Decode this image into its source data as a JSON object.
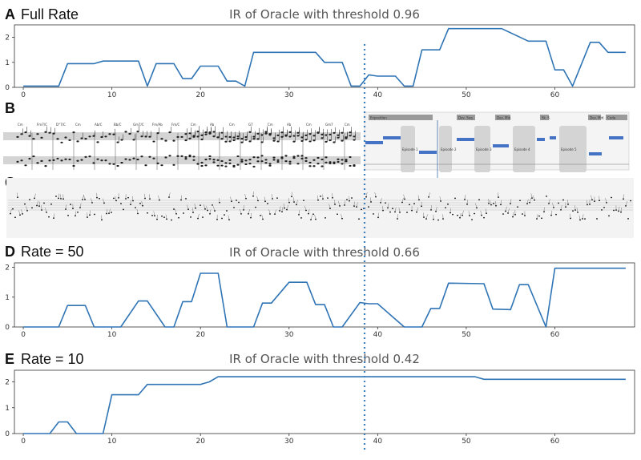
{
  "colors": {
    "series": "#2f74b5",
    "marker": "#3d80c0",
    "section_bar": "#4472c4",
    "section_box": "#d4d4d4"
  },
  "panel_labels": {
    "A": "A",
    "B": "B",
    "C": "C",
    "D": "D",
    "E": "E"
  },
  "panel_a": {
    "name": "Full Rate",
    "title": "IR of Oracle with threshold 0.96"
  },
  "panel_d": {
    "name": "Rate = 50",
    "title": "IR of Oracle with threshold 0.66"
  },
  "panel_e": {
    "name": "Rate = 10",
    "title": "IR of Oracle with threshold 0.42"
  },
  "panel_b": {
    "chord_labels": [
      "Cm",
      "Fm7/C",
      "D°7/C",
      "Cm",
      "Ab/C",
      "Bb/C",
      "Gm7/C",
      "Fm/Ab",
      "Fm/C",
      "Cm",
      "Ab",
      "Cm",
      "G7",
      "Cm",
      "Ab",
      "Cm",
      "Gm7",
      "Cm"
    ],
    "section_labels": [
      "Exposition",
      "Dev. Seq.",
      "Dev. Mid.",
      "Sk. S.",
      "Dev. Mid.",
      "Coda"
    ],
    "episode_labels": [
      "Episode 1",
      "Episode 2",
      "Episode 3",
      "Episode 4",
      "Episode 5"
    ]
  },
  "chart_data": [
    {
      "id": "A",
      "type": "line",
      "title": "IR of Oracle with threshold 0.96",
      "xlim": [
        -1,
        69
      ],
      "ylim": [
        0,
        2.5
      ],
      "xticks": [
        0,
        10,
        20,
        30,
        40,
        50,
        60
      ],
      "yticks": [
        0,
        1,
        2
      ],
      "x": [
        0,
        4,
        5,
        8,
        9,
        13,
        14,
        15,
        17,
        18,
        19,
        20,
        22,
        23,
        24,
        25,
        26,
        27,
        28,
        31,
        33,
        34,
        35,
        36,
        37,
        38,
        39,
        40,
        42,
        43,
        44,
        45,
        46,
        47,
        48,
        52,
        53,
        54,
        57,
        58,
        59,
        60,
        61,
        62,
        64,
        65,
        66,
        68
      ],
      "y": [
        0.05,
        0.05,
        0.95,
        0.95,
        1.05,
        1.05,
        0.05,
        0.95,
        0.95,
        0.35,
        0.35,
        0.85,
        0.85,
        0.25,
        0.25,
        0.05,
        1.4,
        1.4,
        1.4,
        1.4,
        1.4,
        1.0,
        1.0,
        1.0,
        0.05,
        0.05,
        0.5,
        0.45,
        0.45,
        0.05,
        0.05,
        1.5,
        1.5,
        1.5,
        2.35,
        2.35,
        2.35,
        2.35,
        1.85,
        1.85,
        1.85,
        0.7,
        0.7,
        0.05,
        1.8,
        1.8,
        1.4,
        1.4
      ]
    },
    {
      "id": "D",
      "type": "line",
      "title": "IR of Oracle with threshold 0.66",
      "xlim": [
        -1,
        69
      ],
      "ylim": [
        0,
        2.15
      ],
      "xticks": [
        0,
        10,
        20,
        30,
        40,
        50,
        60
      ],
      "yticks": [
        0,
        1,
        2
      ],
      "x": [
        0,
        4,
        5,
        7,
        8,
        10,
        11,
        13,
        14,
        16,
        17,
        18,
        19,
        20,
        22,
        23,
        26,
        27,
        28,
        30,
        32,
        33,
        34,
        35,
        36,
        38,
        39,
        40,
        43,
        44,
        45,
        46,
        47,
        48,
        52,
        53,
        55,
        56,
        57,
        59,
        60,
        61,
        68
      ],
      "y": [
        0,
        0,
        0.72,
        0.72,
        0,
        0,
        0,
        0.87,
        0.87,
        0,
        0,
        0.85,
        0.85,
        1.8,
        1.8,
        0,
        0,
        0.8,
        0.8,
        1.5,
        1.5,
        0.75,
        0.75,
        0,
        0,
        0.82,
        0.78,
        0.78,
        0,
        0,
        0,
        0.62,
        0.62,
        1.47,
        1.45,
        0.6,
        0.58,
        1.42,
        1.42,
        0,
        1.97,
        1.97,
        1.97
      ]
    },
    {
      "id": "E",
      "type": "line",
      "title": "IR of Oracle with threshold 0.42",
      "xlim": [
        -1,
        69
      ],
      "ylim": [
        0,
        2.45
      ],
      "xticks": [
        0,
        10,
        20,
        30,
        40,
        50,
        60
      ],
      "yticks": [
        0,
        1,
        2
      ],
      "x": [
        0,
        3,
        4,
        5,
        6,
        9,
        10,
        11,
        13,
        14,
        16,
        17,
        20,
        21,
        22,
        24,
        51,
        52,
        68
      ],
      "y": [
        0,
        0,
        0.45,
        0.45,
        0,
        0,
        1.5,
        1.5,
        1.5,
        1.9,
        1.9,
        1.9,
        1.9,
        2.0,
        2.2,
        2.2,
        2.2,
        2.1,
        2.1
      ]
    }
  ]
}
